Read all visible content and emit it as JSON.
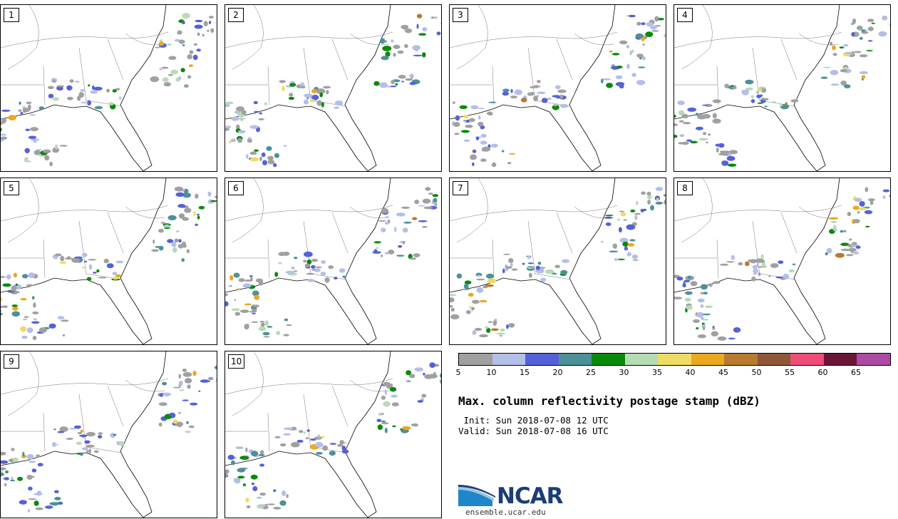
{
  "panels": [
    {
      "label": "1"
    },
    {
      "label": "2"
    },
    {
      "label": "3"
    },
    {
      "label": "4"
    },
    {
      "label": "5"
    },
    {
      "label": "6"
    },
    {
      "label": "7"
    },
    {
      "label": "8"
    },
    {
      "label": "9"
    },
    {
      "label": "10"
    }
  ],
  "colorbar": {
    "colors": [
      "#a0a0a0",
      "#b4bfe8",
      "#5561d8",
      "#4c9197",
      "#0a8a0a",
      "#b6dcb4",
      "#eedc64",
      "#eba821",
      "#b77a2f",
      "#8f5637",
      "#ef4d78",
      "#6a1634",
      "#ad4aa3"
    ],
    "ticks": [
      "5",
      "10",
      "15",
      "20",
      "25",
      "30",
      "35",
      "40",
      "45",
      "50",
      "55",
      "60",
      "65"
    ]
  },
  "title": "Max. column reflectivity postage stamp (dBZ)",
  "init": " Init: Sun 2018-07-08 12 UTC",
  "valid": "Valid: Sun 2018-07-08 16 UTC",
  "logo": {
    "text": "NCAR",
    "url": "ensemble.ucar.edu"
  }
}
